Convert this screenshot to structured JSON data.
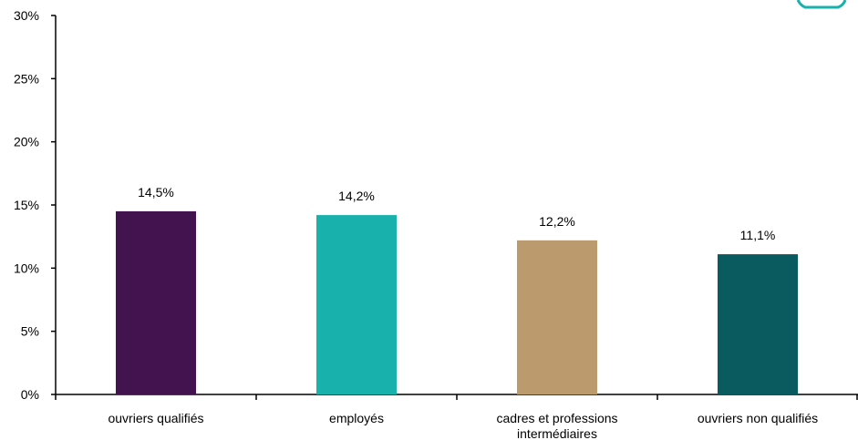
{
  "chart_data": {
    "type": "bar",
    "categories": [
      [
        "ouvriers qualifiés"
      ],
      [
        "employés"
      ],
      [
        "cadres et professions",
        "intermédiaires"
      ],
      [
        "ouvriers non qualifiés"
      ]
    ],
    "values": [
      14.5,
      14.2,
      12.2,
      11.1
    ],
    "value_labels": [
      "14,5%",
      "14,2%",
      "12,2%",
      "11,1%"
    ],
    "bar_colors": [
      "#43134f",
      "#18b1ac",
      "#bb9a6d",
      "#0a5b60"
    ],
    "ylim": [
      0,
      30
    ],
    "yticks": [
      0,
      5,
      10,
      15,
      20,
      25,
      30
    ],
    "ytick_labels": [
      "0%",
      "5%",
      "10%",
      "15%",
      "20%",
      "25%",
      "30%"
    ],
    "title": "",
    "xlabel": "",
    "ylabel": "",
    "grid": false,
    "accent_color": "#18b1ac"
  }
}
